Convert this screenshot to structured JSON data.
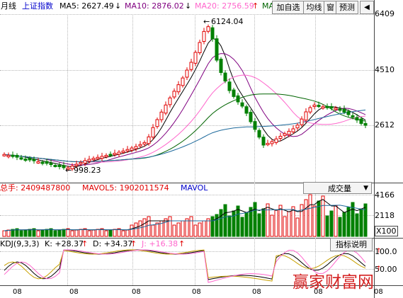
{
  "top_bar": {
    "period": "月线",
    "index_name": "上证指数",
    "ma5": "MA5: 2627.49",
    "ma10": "MA10: 2876.02",
    "ma20": "MA20: 2756.59",
    "ma_cut": "MA",
    "buttons": [
      "加自选",
      "均线",
      "窗",
      "预测"
    ],
    "nav_label": "◀"
  },
  "price_axis": [
    "6409",
    "4510",
    "2612"
  ],
  "price_annotations": {
    "high": "6124.04",
    "low": "998.23"
  },
  "volume_bar": {
    "total": "总手: 2409487800",
    "mavol5": "MAVOL5: 1902011574",
    "mavol": "MAVOL",
    "selector": "成交量",
    "axis": [
      "4166",
      "2118",
      "X100"
    ]
  },
  "kdj_bar": {
    "params": "KDJ(9,3,3)",
    "k": "K: +28.37",
    "d": "D: +34.37",
    "j": "J: +16.38",
    "button": "指标说明",
    "axis": [
      "100.0",
      "50.00"
    ]
  },
  "x_labels": [
    "08",
    "08",
    "08",
    "08",
    "08",
    "08",
    "08",
    "08"
  ],
  "watermark": "赢家财富网",
  "colors": {
    "up": "#e00000",
    "down": "#008000",
    "ma5": "#000000",
    "ma10": "#800080",
    "ma20": "#ff66cc",
    "ma30": "#006400",
    "ma60": "#1e6a9c",
    "label_blue": "#0000cc"
  }
}
